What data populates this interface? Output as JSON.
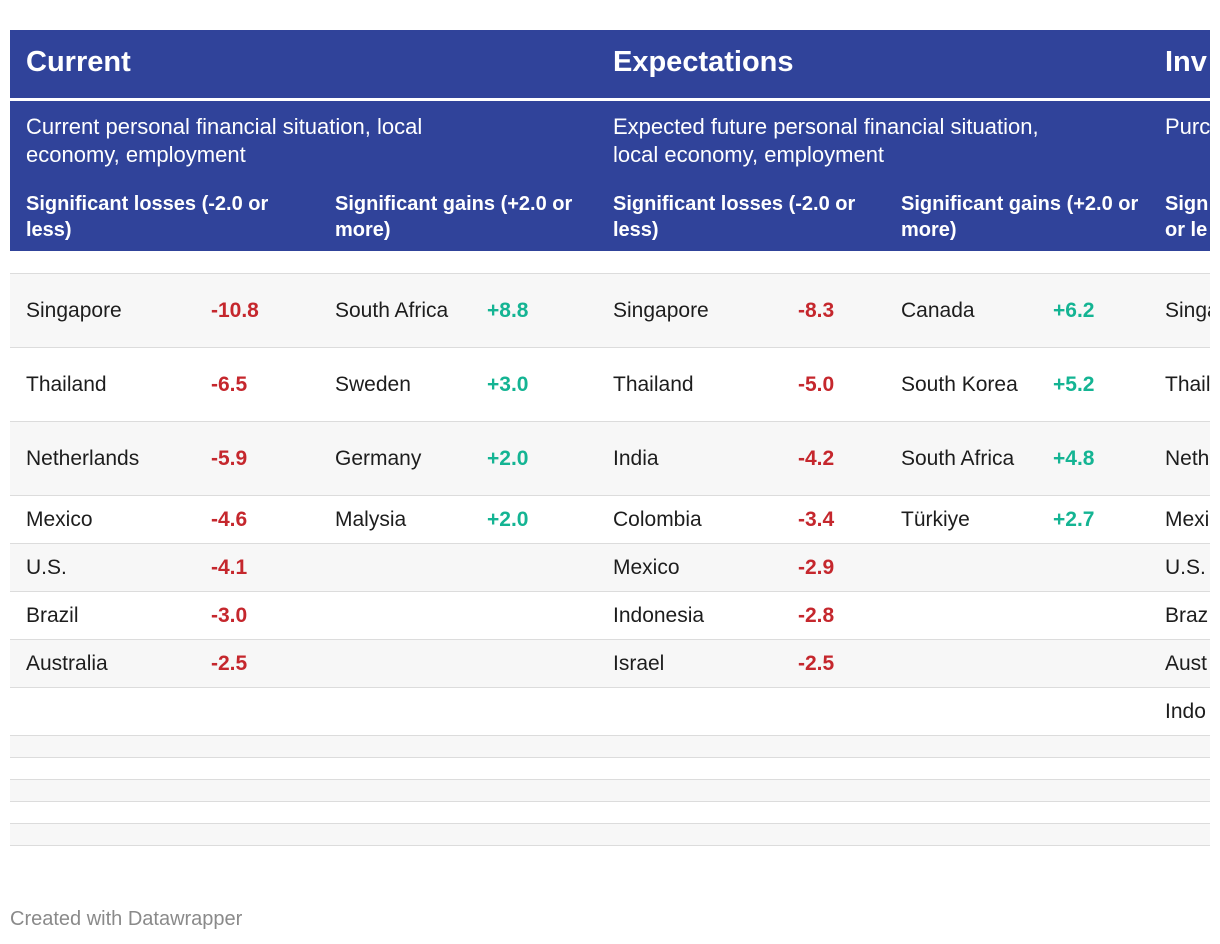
{
  "chart_data": {
    "type": "table",
    "groups": [
      {
        "title": "Current",
        "description": "Current personal financial situation, local economy, employment",
        "columns": [
          "Significant losses (-2.0 or less)",
          "Significant gains (+2.0 or more)"
        ],
        "losses": [
          {
            "country": "Singapore",
            "value": "-10.8"
          },
          {
            "country": "Thailand",
            "value": "-6.5"
          },
          {
            "country": "Netherlands",
            "value": "-5.9"
          },
          {
            "country": "Mexico",
            "value": "-4.6"
          },
          {
            "country": "U.S.",
            "value": "-4.1"
          },
          {
            "country": "Brazil",
            "value": "-3.0"
          },
          {
            "country": "Australia",
            "value": "-2.5"
          }
        ],
        "gains": [
          {
            "country": "South Africa",
            "value": "+8.8"
          },
          {
            "country": "Sweden",
            "value": "+3.0"
          },
          {
            "country": "Germany",
            "value": "+2.0"
          },
          {
            "country": "Malysia",
            "value": "+2.0"
          }
        ]
      },
      {
        "title": "Expectations",
        "description": "Expected future personal financial situation, local economy, employment",
        "columns": [
          "Significant losses (-2.0 or less)",
          "Significant gains (+2.0 or more)"
        ],
        "losses": [
          {
            "country": "Singapore",
            "value": "-8.3"
          },
          {
            "country": "Thailand",
            "value": "-5.0"
          },
          {
            "country": "India",
            "value": "-4.2"
          },
          {
            "country": "Colombia",
            "value": "-3.4"
          },
          {
            "country": "Mexico",
            "value": "-2.9"
          },
          {
            "country": "Indonesia",
            "value": "-2.8"
          },
          {
            "country": "Israel",
            "value": "-2.5"
          }
        ],
        "gains": [
          {
            "country": "Canada",
            "value": "+6.2"
          },
          {
            "country": "South Korea",
            "value": "+5.2"
          },
          {
            "country": "South Africa",
            "value": "+4.8"
          },
          {
            "country": "Türkiye",
            "value": "+2.7"
          }
        ]
      },
      {
        "title": "Inv",
        "description": "Purc finan",
        "columns": [
          "Sign or le"
        ],
        "losses": [
          {
            "country": "Singa",
            "value": ""
          },
          {
            "country": "Thail",
            "value": ""
          },
          {
            "country": "Neth",
            "value": ""
          },
          {
            "country": "Mexi",
            "value": ""
          },
          {
            "country": "U.S.",
            "value": ""
          },
          {
            "country": "Braz",
            "value": ""
          },
          {
            "country": "Aust",
            "value": ""
          },
          {
            "country": "Indo",
            "value": ""
          }
        ],
        "gains": []
      }
    ]
  },
  "footer": "Created with Datawrapper",
  "colors": {
    "header_bg": "#30439a",
    "negative": "#c5272d",
    "positive": "#14b493"
  }
}
